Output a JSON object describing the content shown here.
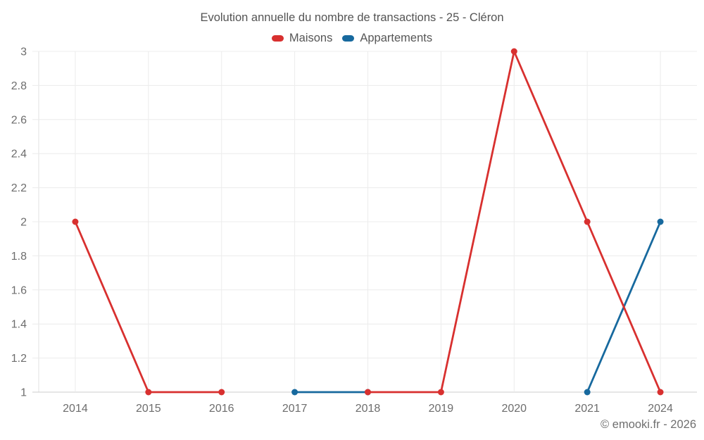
{
  "header": {
    "title": "Evolution annuelle du nombre de transactions - 25 - Cléron"
  },
  "legend": {
    "items": [
      {
        "label": "Maisons",
        "color": "#d8302f"
      },
      {
        "label": "Appartements",
        "color": "#17699e"
      }
    ]
  },
  "footer": {
    "copyright": "© emooki.fr - 2026"
  },
  "chart_data": {
    "type": "line",
    "title": "Evolution annuelle du nombre de transactions - 25 - Cléron",
    "categories": [
      "2014",
      "2015",
      "2016",
      "2017",
      "2018",
      "2019",
      "2020",
      "2021",
      "2024"
    ],
    "series": [
      {
        "name": "Maisons",
        "color": "#d8302f",
        "values": [
          2,
          1,
          1,
          null,
          1,
          1,
          3,
          2,
          1
        ]
      },
      {
        "name": "Appartements",
        "color": "#17699e",
        "values": [
          null,
          null,
          null,
          1,
          1,
          null,
          null,
          1,
          2
        ]
      }
    ],
    "xlabel": "",
    "ylabel": "",
    "ylim": [
      1,
      3
    ],
    "yticks": [
      1,
      1.2,
      1.4,
      1.6,
      1.8,
      2,
      2.2,
      2.4,
      2.6,
      2.8,
      3
    ],
    "grid": true,
    "legend_position": "top",
    "marker_radius": 4.5,
    "line_width": 2.8,
    "grid_color": "#ececec",
    "axis_color": "#cccccc"
  }
}
